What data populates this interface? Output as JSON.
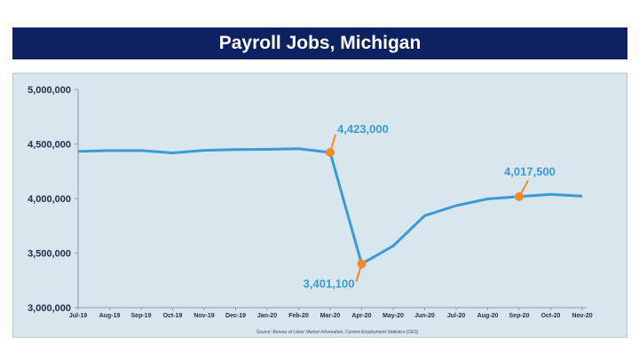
{
  "chart_data": {
    "type": "line",
    "title": "Payroll Jobs, Michigan",
    "categories": [
      "Jul-19",
      "Aug-19",
      "Sep-19",
      "Oct-19",
      "Nov-19",
      "Dec-19",
      "Jan-20",
      "Feb-20",
      "Mar-20",
      "Apr-20",
      "May-20",
      "Jun-20",
      "Jul-20",
      "Aug-20",
      "Sep-20",
      "Oct-20",
      "Nov-20"
    ],
    "series": [
      {
        "values": [
          4433000,
          4440000,
          4440000,
          4419000,
          4442000,
          4450000,
          4451000,
          4458000,
          4423000,
          3401100,
          3565000,
          3843000,
          3935000,
          3997000,
          4017500,
          4038000,
          4023000
        ]
      }
    ],
    "ylim": [
      3000000,
      5000000
    ],
    "yticks": [
      "5,000,000",
      "4,500,000",
      "4,000,000",
      "3,500,000",
      "3,000,000"
    ],
    "ytick_values": [
      5000000,
      4500000,
      4000000,
      3500000,
      3000000
    ],
    "annotations": [
      {
        "category": "Mar-20",
        "text": "4,423,000"
      },
      {
        "category": "Apr-20",
        "text": "3,401,100"
      },
      {
        "category": "Sep-20",
        "text": "4,017,500"
      }
    ],
    "source": "Source: Bureau of Labor Market Information, Current Employment Statistics (CES)",
    "colors": {
      "line": "#3a9ad8",
      "marker": "#f08a2c",
      "title_bg": "#0d2060",
      "panel_bg": "#d8e6ee"
    },
    "grid": false,
    "legend": "none"
  }
}
